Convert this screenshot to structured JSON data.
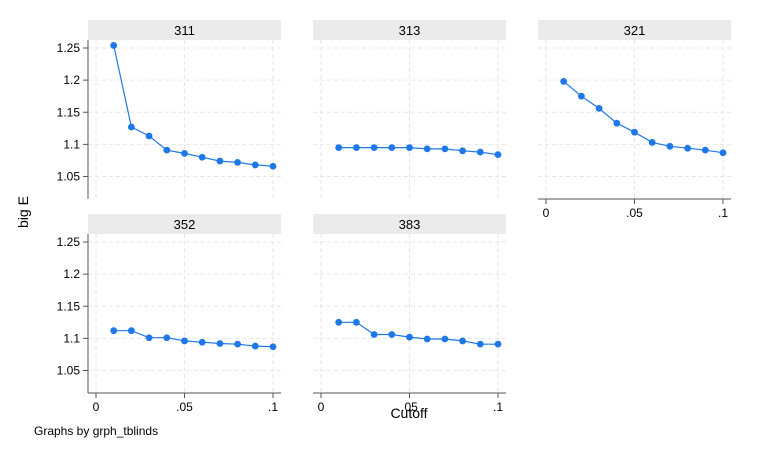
{
  "chart_data": {
    "type": "line",
    "ylabel": "big E",
    "xlabel": "Cutoff",
    "note": "Graphs by grph_tblinds",
    "x": [
      0.01,
      0.02,
      0.03,
      0.04,
      0.05,
      0.06,
      0.07,
      0.08,
      0.09,
      0.1
    ],
    "xlim": [
      0,
      0.1
    ],
    "ylim": [
      1.045,
      1.265
    ],
    "xticks": [
      0,
      0.05,
      0.1
    ],
    "xtick_labels": [
      "0",
      ".05",
      ".1"
    ],
    "yticks": [
      1.05,
      1.1,
      1.15,
      1.2,
      1.25
    ],
    "ytick_labels": [
      "1.05",
      "1.1",
      "1.15",
      "1.2",
      "1.25"
    ],
    "grid": true,
    "colors": {
      "line": "#1f78e8",
      "strip": "#ebebeb",
      "grid": "#e6e6e6",
      "axis": "#555555"
    },
    "panels": [
      {
        "title": "311",
        "values": [
          1.254,
          1.127,
          1.113,
          1.091,
          1.086,
          1.08,
          1.074,
          1.072,
          1.068,
          1.066
        ]
      },
      {
        "title": "313",
        "values": [
          1.095,
          1.095,
          1.095,
          1.095,
          1.095,
          1.093,
          1.093,
          1.09,
          1.088,
          1.084
        ]
      },
      {
        "title": "321",
        "values": [
          1.198,
          1.175,
          1.156,
          1.133,
          1.119,
          1.103,
          1.097,
          1.094,
          1.091,
          1.087
        ]
      },
      {
        "title": "352",
        "values": [
          1.112,
          1.112,
          1.101,
          1.101,
          1.096,
          1.094,
          1.092,
          1.091,
          1.088,
          1.087
        ]
      },
      {
        "title": "383",
        "values": [
          1.125,
          1.125,
          1.106,
          1.106,
          1.102,
          1.099,
          1.099,
          1.096,
          1.091,
          1.091
        ]
      }
    ]
  }
}
